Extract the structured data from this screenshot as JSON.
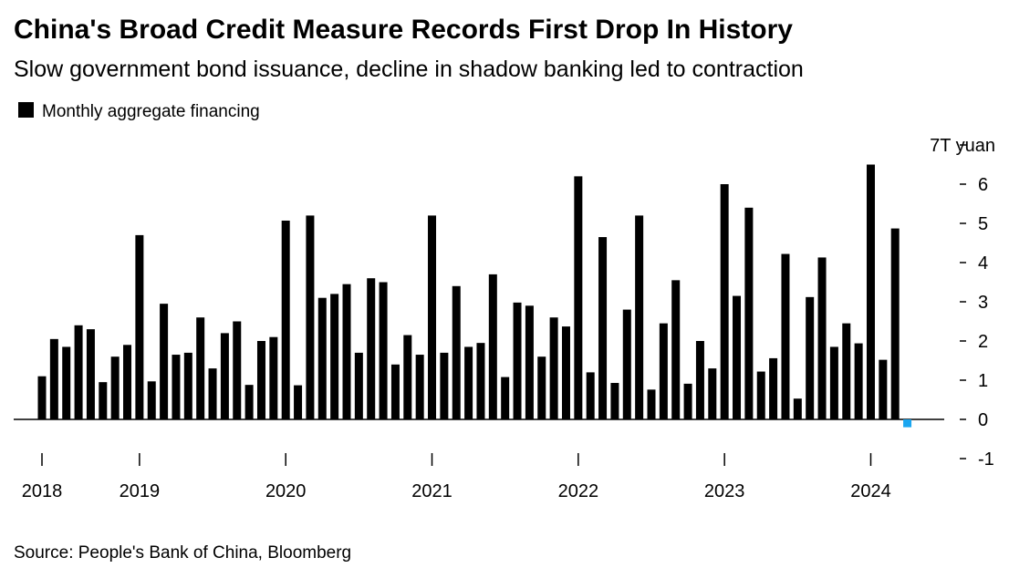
{
  "chart_data": {
    "type": "bar",
    "title": "China's Broad Credit Measure Records First Drop In History",
    "subtitle": "Slow government bond issuance, decline in shadow banking led to contraction",
    "source": "Source: People's Bank of China, Bloomberg",
    "series": [
      {
        "name": "Monthly aggregate financing",
        "color": "#000000",
        "negative_color": "#1ba6f0",
        "values": [
          1.1,
          2.05,
          1.85,
          2.4,
          2.3,
          0.95,
          1.6,
          1.9,
          4.7,
          0.97,
          2.95,
          1.65,
          1.7,
          2.6,
          1.3,
          2.2,
          2.5,
          0.88,
          2.0,
          2.1,
          5.07,
          0.87,
          5.2,
          3.1,
          3.2,
          3.45,
          1.7,
          3.6,
          3.5,
          1.4,
          2.15,
          1.65,
          5.2,
          1.7,
          3.4,
          1.85,
          1.95,
          3.7,
          1.08,
          2.98,
          2.9,
          1.6,
          2.6,
          2.37,
          6.2,
          1.2,
          4.65,
          0.93,
          2.8,
          5.2,
          0.76,
          2.45,
          3.55,
          0.91,
          2.0,
          1.3,
          6.0,
          3.15,
          5.4,
          1.22,
          1.56,
          4.22,
          0.53,
          3.12,
          4.13,
          1.85,
          2.45,
          1.94,
          6.5,
          1.52,
          4.87,
          -0.2
        ]
      }
    ],
    "categories": [
      "2018",
      null,
      null,
      null,
      null,
      null,
      null,
      null,
      "2019",
      null,
      null,
      null,
      null,
      null,
      null,
      null,
      null,
      null,
      null,
      null,
      "2020",
      null,
      null,
      null,
      null,
      null,
      null,
      null,
      null,
      null,
      null,
      null,
      "2021",
      null,
      null,
      null,
      null,
      null,
      null,
      null,
      null,
      null,
      null,
      null,
      "2022",
      null,
      null,
      null,
      null,
      null,
      null,
      null,
      null,
      null,
      null,
      null,
      "2023",
      null,
      null,
      null,
      null,
      null,
      null,
      null,
      null,
      null,
      null,
      null,
      "2024",
      null,
      null,
      null
    ],
    "ylim": [
      -1,
      7
    ],
    "yticks": [
      -1,
      0,
      1,
      2,
      3,
      4,
      5,
      6,
      {
        "value": 7,
        "label": "7T yuan"
      }
    ],
    "grid": false
  }
}
